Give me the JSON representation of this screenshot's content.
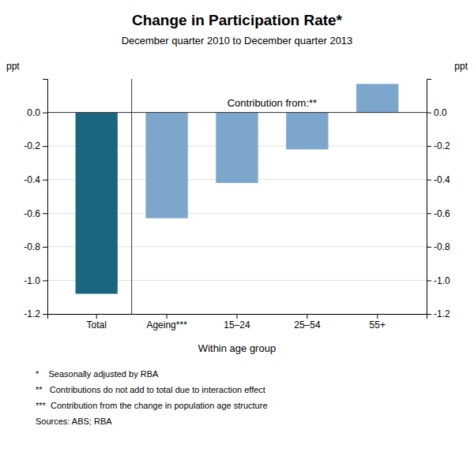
{
  "chart_data": {
    "type": "bar",
    "title": "Change in Participation Rate*",
    "subtitle": "December quarter 2010 to December quarter 2013",
    "categories": [
      "Total",
      "Ageing***",
      "15–24",
      "25–54",
      "55+"
    ],
    "values": [
      -1.08,
      -0.63,
      -0.42,
      -0.22,
      0.17
    ],
    "colors": [
      "#1a6680",
      "#7ca6cc",
      "#7ca6cc",
      "#7ca6cc",
      "#7ca6cc"
    ],
    "xlabel": "Within age group",
    "ylabel": "ppt",
    "y2label": "ppt",
    "ylim": [
      -1.2,
      0.2
    ],
    "yticks": [
      -1.2,
      {
        "value": -1.0,
        "label": "-1.0"
      },
      -0.8,
      -0.6,
      -0.4,
      -0.2,
      {
        "value": 0.0,
        "label": "0.0"
      }
    ],
    "y2lim": [
      -1.2,
      0.2
    ],
    "y2ticks": [
      -1.2,
      {
        "value": -1.0,
        "label": "-1.0"
      },
      -0.8,
      -0.6,
      -0.4,
      -0.2,
      {
        "value": 0.0,
        "label": "0.0"
      }
    ],
    "grid": true,
    "annotation": "Contribution from:**",
    "footnotes": [
      "*    Seasonally adjusted by RBA",
      "**   Contributions do not add to total due to interaction effect",
      "***  Contribution from the change in population age structure",
      "Sources: ABS; RBA"
    ]
  }
}
